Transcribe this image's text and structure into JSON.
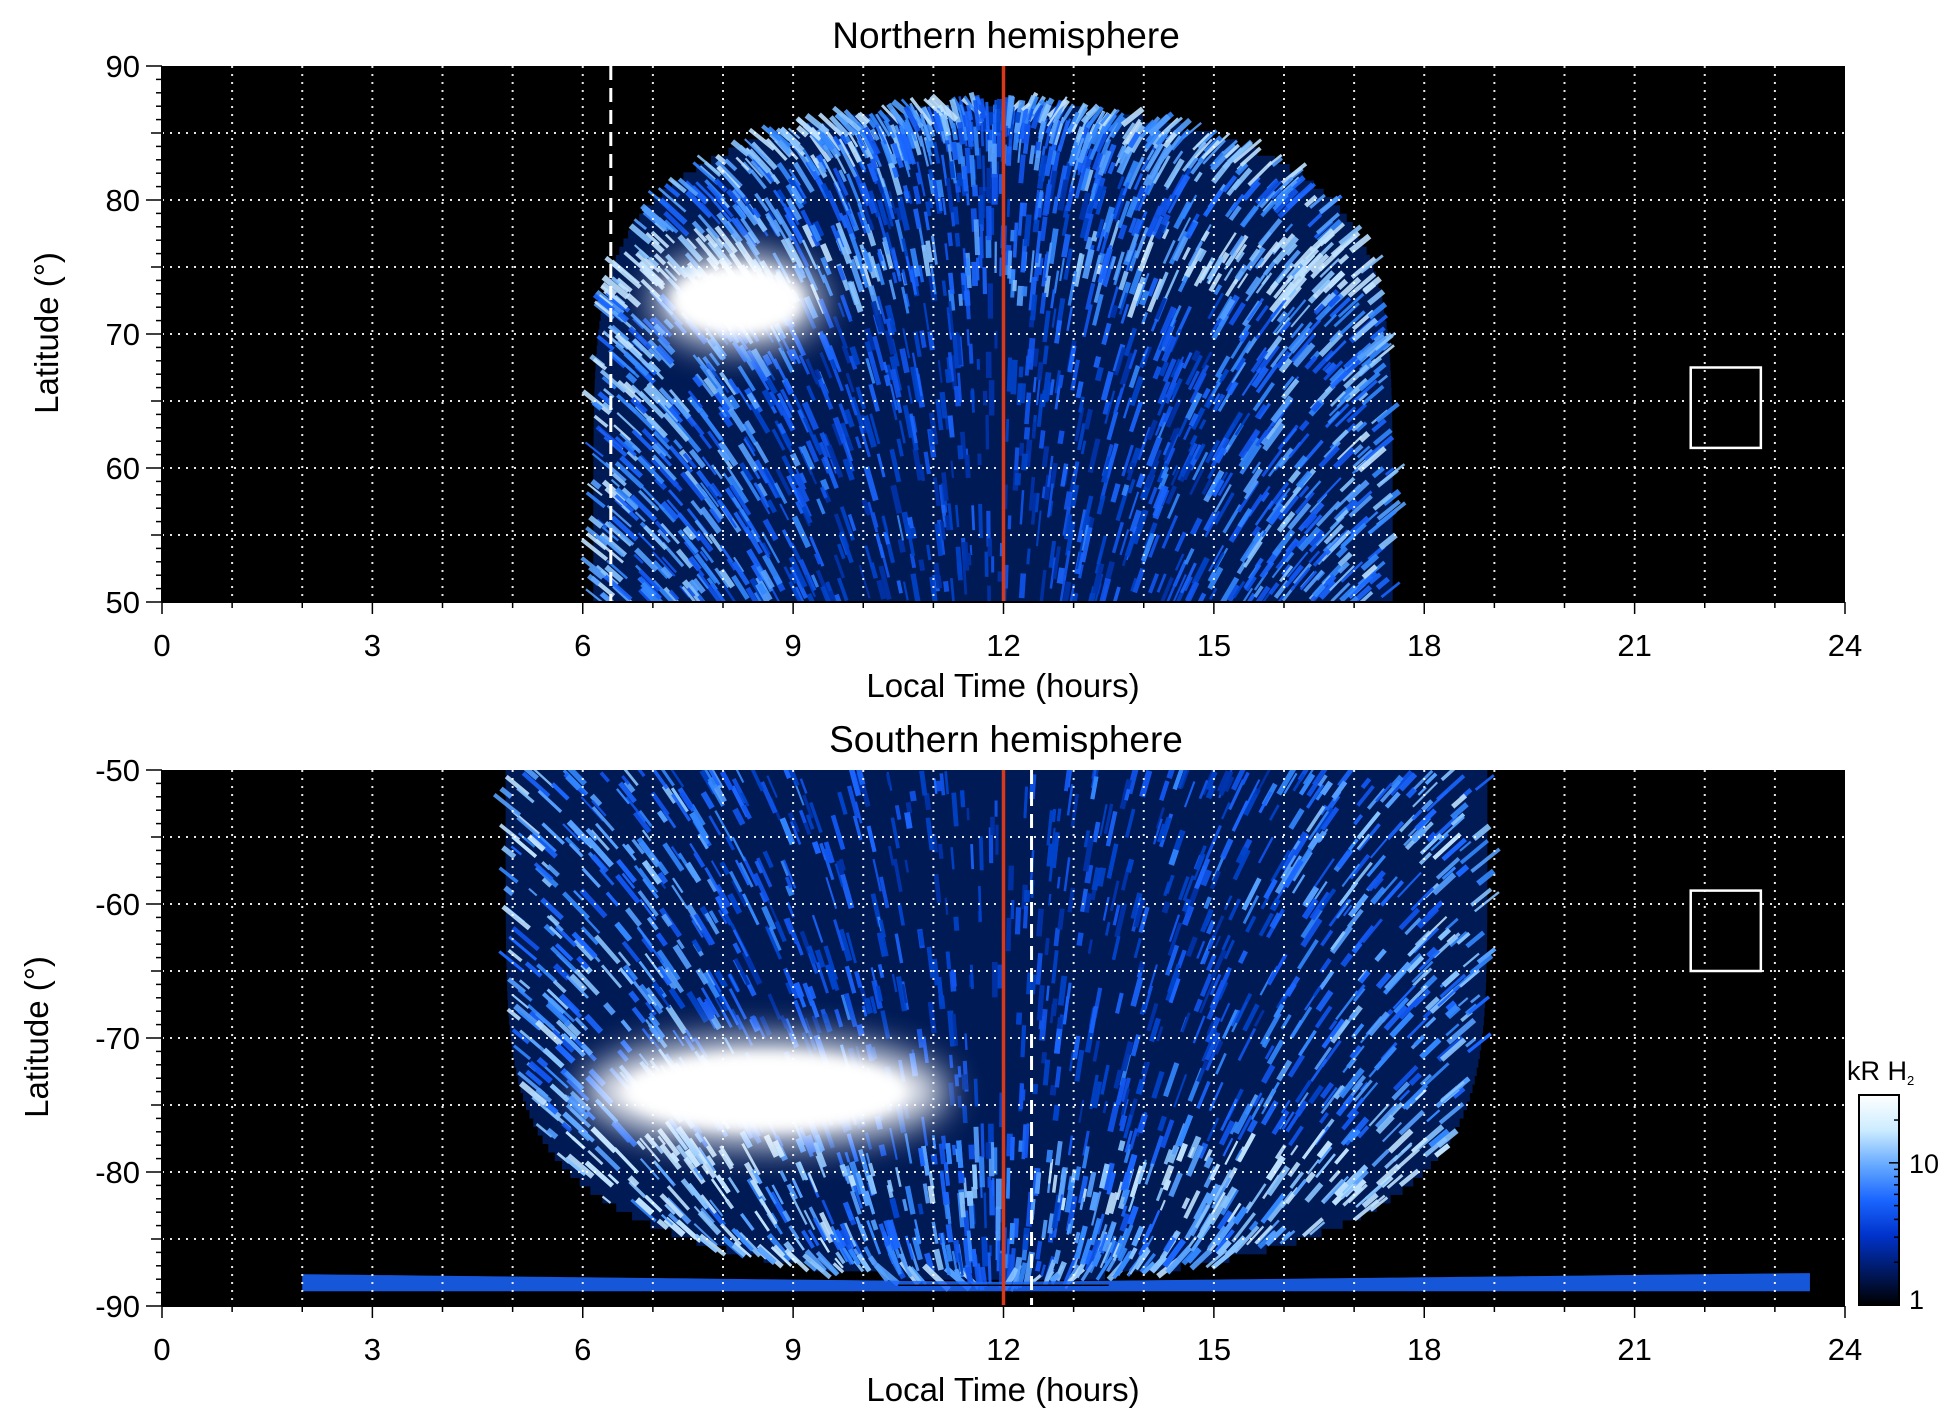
{
  "chart_data": [
    {
      "type": "heatmap",
      "title": "Northern hemisphere",
      "xlabel": "Local Time (hours)",
      "ylabel": "Latitude (°)",
      "xlim": [
        0,
        24
      ],
      "ylim": [
        50,
        90
      ],
      "x_ticks": [
        "0",
        "3",
        "6",
        "9",
        "12",
        "15",
        "18",
        "21",
        "24"
      ],
      "y_ticks": [
        "50",
        "60",
        "70",
        "80",
        "90"
      ],
      "grid": true,
      "noon_line_x": 12,
      "dashed_line_x": 6.4,
      "box": {
        "x": [
          21.8,
          22.8
        ],
        "y": [
          61.5,
          67.5
        ]
      },
      "bright_spot": {
        "x": [
          7.0,
          9.4
        ],
        "y": [
          69,
          76
        ]
      },
      "emission_region": {
        "x": [
          6.5,
          17.8
        ],
        "y": [
          50,
          87
        ]
      },
      "oval_latitude": 75
    },
    {
      "type": "heatmap",
      "title": "Southern hemisphere",
      "xlabel": "Local Time (hours)",
      "ylabel": "Latitude (°)",
      "xlim": [
        0,
        24
      ],
      "ylim": [
        -90,
        -50
      ],
      "x_ticks": [
        "0",
        "3",
        "6",
        "9",
        "12",
        "15",
        "18",
        "21",
        "24"
      ],
      "y_ticks": [
        "-90",
        "-80",
        "-70",
        "-60",
        "-50"
      ],
      "grid": true,
      "noon_line_x": 12,
      "dashed_line_x": 12.4,
      "box": {
        "x": [
          21.8,
          22.8
        ],
        "y": [
          -65,
          -59
        ]
      },
      "bright_spot": {
        "x": [
          6.0,
          11.2
        ],
        "y": [
          -78,
          -70
        ]
      },
      "emission_region": {
        "x": [
          5.0,
          19.0
        ],
        "y": [
          -88,
          -50
        ]
      },
      "oval_latitude": -80
    }
  ],
  "colorbar": {
    "label": "kR H",
    "label_sub": "2",
    "ticks": [
      "1",
      "10"
    ],
    "scale": "log",
    "range": [
      1,
      30
    ],
    "colors": [
      "#000000",
      "#001a66",
      "#0033cc",
      "#1a66ff",
      "#66aaff",
      "#ccecff",
      "#ffffff"
    ]
  }
}
